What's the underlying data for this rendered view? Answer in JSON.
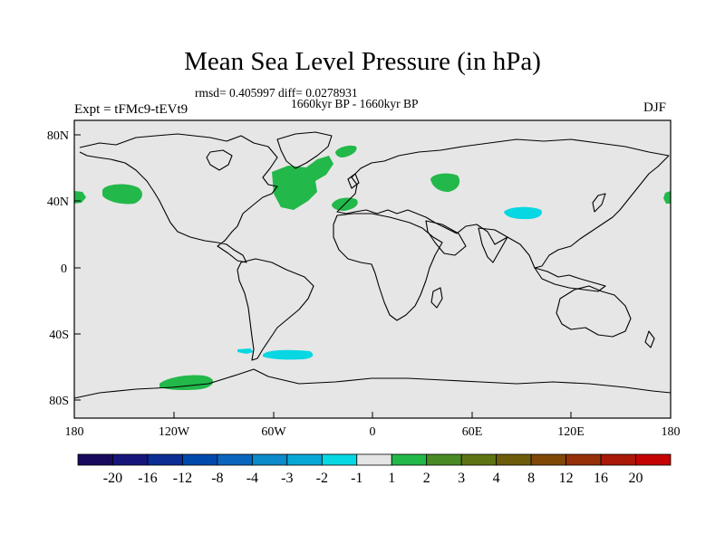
{
  "title": "Mean Sea Level Pressure (in hPa)",
  "stats_text": "rmsd= 0.405997 diff= 0.0278931",
  "period_text": "1660kyr BP - 1660kyr BP",
  "expt_text": "Expt = tFMc9-tEVt9",
  "season_text": "DJF",
  "lat_labels": [
    "80N",
    "40N",
    "0",
    "40S",
    "80S"
  ],
  "lon_labels": [
    "180",
    "120W",
    "60W",
    "0",
    "60E",
    "120E",
    "180"
  ],
  "colorbar": {
    "colors": [
      "#1a0a5e",
      "#16167a",
      "#0b2d94",
      "#0049ac",
      "#0a66bd",
      "#0c8ac9",
      "#08a8d4",
      "#07d7e2",
      "#e5e5e5",
      "#22b84a",
      "#4a8a24",
      "#5e7414",
      "#6d5c0a",
      "#7f4806",
      "#953008",
      "#aa1808",
      "#c40404"
    ],
    "labels": [
      "-20",
      "-16",
      "-12",
      "-8",
      "-4",
      "-3",
      "-2",
      "-1",
      "1",
      "2",
      "3",
      "4",
      "8",
      "12",
      "16",
      "20"
    ]
  },
  "anomaly_colors": {
    "positive_1_2": "#22b84a",
    "negative_1_2": "#07d7e2",
    "land_outline": "#000000",
    "ocean_background": "#e6e6e6"
  }
}
